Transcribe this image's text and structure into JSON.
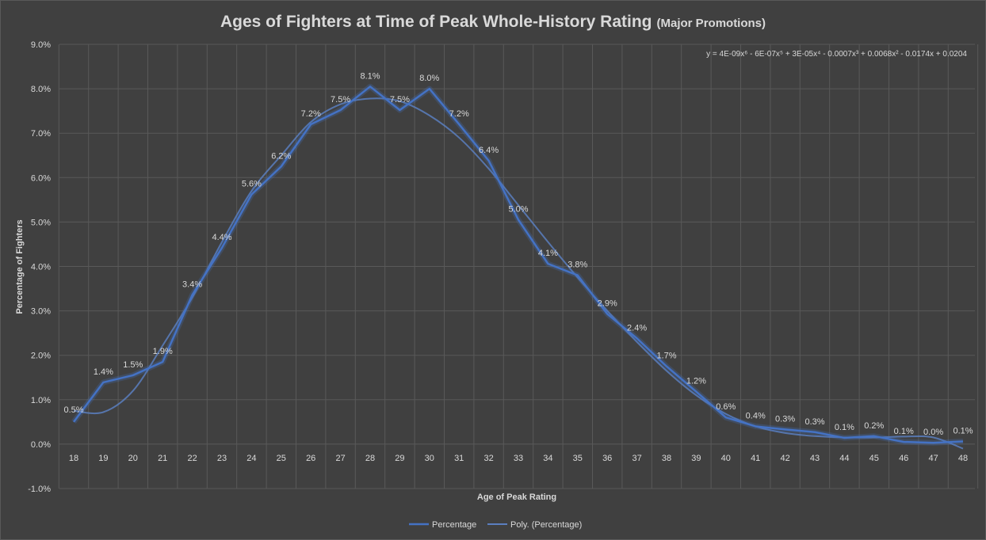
{
  "chart_data": {
    "type": "line",
    "title": "Ages of Fighters at Time of Peak Whole-History Rating",
    "subtitle": "(Major Promotions)",
    "xlabel": "Age of Peak Rating",
    "ylabel": "Percentage of Fighters",
    "ylim": [
      -0.01,
      0.09
    ],
    "y_ticks": [
      "9.0%",
      "8.0%",
      "7.0%",
      "6.0%",
      "5.0%",
      "4.0%",
      "3.0%",
      "2.0%",
      "1.0%",
      "0.0%",
      "-1.0%"
    ],
    "y_tick_values": [
      0.09,
      0.08,
      0.07,
      0.06,
      0.05,
      0.04,
      0.03,
      0.02,
      0.01,
      0.0,
      -0.01
    ],
    "grid": true,
    "legend_position": "bottom",
    "equation": "y = 4E-09x⁶ - 6E-07x⁵ + 3E-05x⁴ - 0.0007x³ + 0.0068x² - 0.0174x + 0.0204",
    "colors": {
      "series": "#4472c4",
      "trend": "#5b7fc0",
      "background": "#404040",
      "grid": "#595959",
      "text": "#d9d9d9"
    },
    "categories": [
      "18",
      "19",
      "20",
      "21",
      "22",
      "23",
      "24",
      "25",
      "26",
      "27",
      "28",
      "29",
      "30",
      "31",
      "32",
      "33",
      "34",
      "35",
      "36",
      "37",
      "38",
      "39",
      "40",
      "41",
      "42",
      "43",
      "44",
      "45",
      "46",
      "47",
      "48"
    ],
    "series": [
      {
        "name": "Percentage",
        "values": [
          0.005,
          0.014,
          0.015,
          0.019,
          0.034,
          0.044,
          0.056,
          0.062,
          0.072,
          0.075,
          0.081,
          0.075,
          0.08,
          0.072,
          0.064,
          0.05,
          0.041,
          0.038,
          0.029,
          0.024,
          0.017,
          0.012,
          0.006,
          0.004,
          0.003,
          0.003,
          0.001,
          0.002,
          0.001,
          0.0,
          0.001
        ],
        "plot_values": [
          0.005,
          0.0139,
          0.0155,
          0.0185,
          0.0336,
          0.0442,
          0.0562,
          0.0625,
          0.072,
          0.0752,
          0.0805,
          0.0752,
          0.08,
          0.072,
          0.0638,
          0.0505,
          0.0406,
          0.038,
          0.0293,
          0.0238,
          0.0175,
          0.0118,
          0.006,
          0.004,
          0.0033,
          0.0027,
          0.0014,
          0.0018,
          0.0005,
          0.0003,
          0.0006
        ],
        "labels": [
          "0.5%",
          "1.4%",
          "1.5%",
          "1.9%",
          "3.4%",
          "4.4%",
          "5.6%",
          "6.2%",
          "7.2%",
          "7.5%",
          "8.1%",
          "7.5%",
          "8.0%",
          "7.2%",
          "6.4%",
          "5.0%",
          "4.1%",
          "3.8%",
          "2.9%",
          "2.4%",
          "1.7%",
          "1.2%",
          "0.6%",
          "0.4%",
          "0.3%",
          "0.3%",
          "0.1%",
          "0.2%",
          "0.1%",
          "0.0%",
          "0.1%"
        ]
      },
      {
        "name": "Poly. (Percentage)",
        "values": [
          0.0075,
          0.0072,
          0.012,
          0.0222,
          0.033,
          0.0455,
          0.057,
          0.065,
          0.0725,
          0.0765,
          0.0778,
          0.0772,
          0.074,
          0.069,
          0.062,
          0.0538,
          0.0455,
          0.0375,
          0.03,
          0.023,
          0.0165,
          0.011,
          0.0068,
          0.004,
          0.0025,
          0.0018,
          0.0015,
          0.0015,
          0.0017,
          0.0015,
          -0.001
        ]
      }
    ]
  }
}
